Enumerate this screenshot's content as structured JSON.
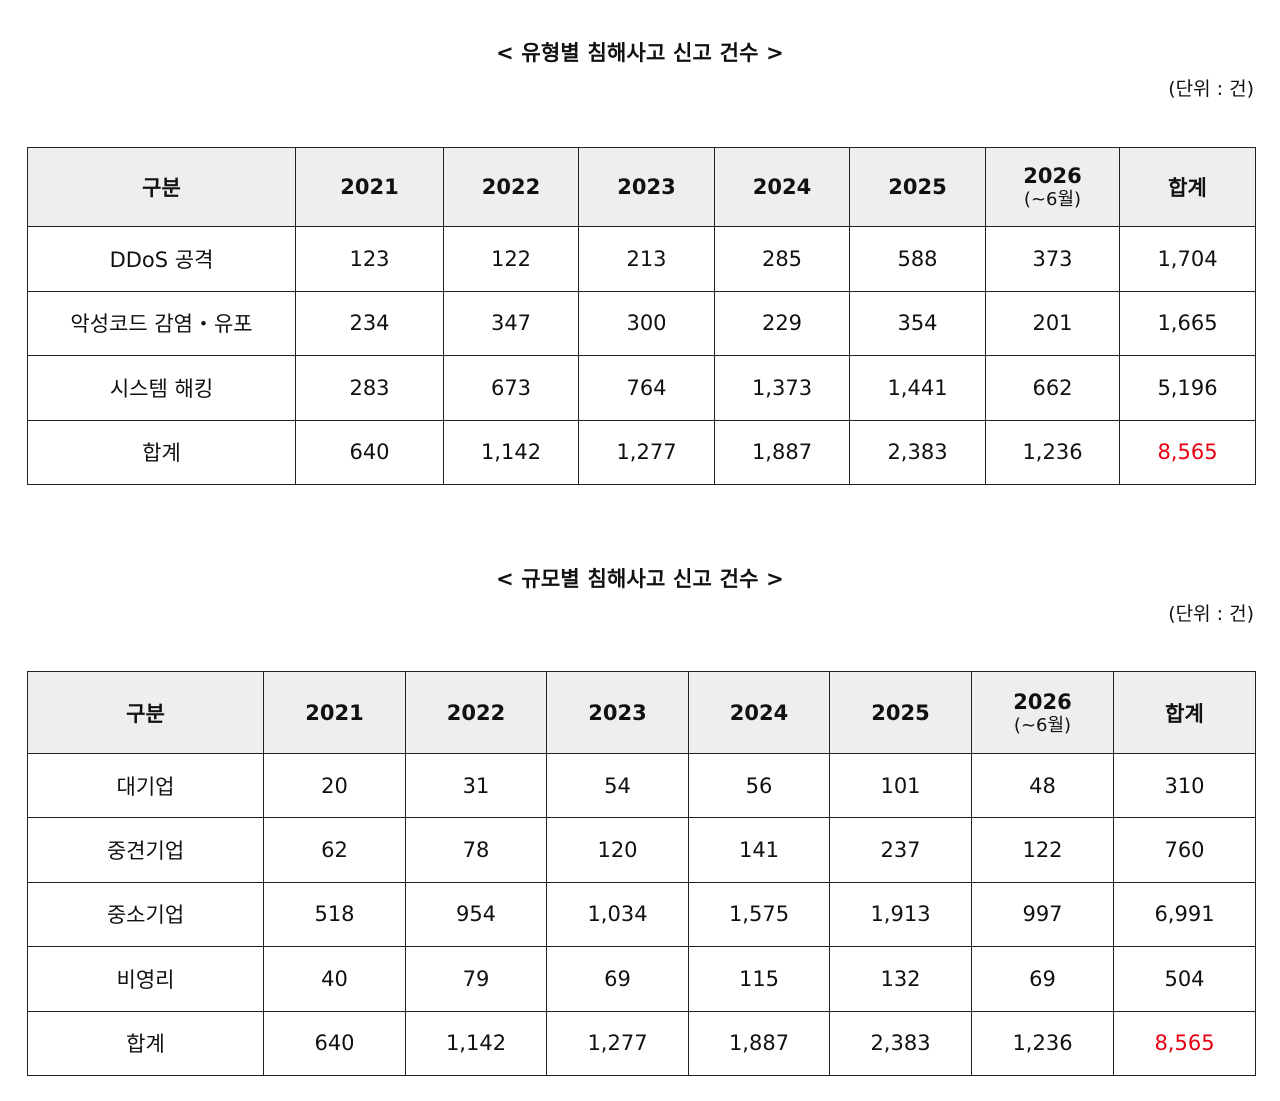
{
  "table1": {
    "title": "< 유형별 침해사고 신고 건수 >",
    "unit": "(단위 : 건)",
    "headers": [
      "구분",
      "2021",
      "2022",
      "2023",
      "2024",
      "2025",
      "2026",
      "합계"
    ],
    "header_sub": "(~6월)",
    "rows": [
      [
        "DDoS 공격",
        "123",
        "122",
        "213",
        "285",
        "588",
        "373",
        "1,704"
      ],
      [
        "악성코드 감염・유포",
        "234",
        "347",
        "300",
        "229",
        "354",
        "201",
        "1,665"
      ],
      [
        "시스템 해킹",
        "283",
        "673",
        "764",
        "1,373",
        "1,441",
        "662",
        "5,196"
      ],
      [
        "합계",
        "640",
        "1,142",
        "1,277",
        "1,887",
        "2,383",
        "1,236",
        "8,565"
      ]
    ]
  },
  "table2": {
    "title": "< 규모별 침해사고 신고 건수 >",
    "unit": "(단위 : 건)",
    "headers": [
      "구분",
      "2021",
      "2022",
      "2023",
      "2024",
      "2025",
      "2026",
      "합계"
    ],
    "header_sub": "(~6월)",
    "rows": [
      [
        "대기업",
        "20",
        "31",
        "54",
        "56",
        "101",
        "48",
        "310"
      ],
      [
        "중견기업",
        "62",
        "78",
        "120",
        "141",
        "237",
        "122",
        "760"
      ],
      [
        "중소기업",
        "518",
        "954",
        "1,034",
        "1,575",
        "1,913",
        "997",
        "6,991"
      ],
      [
        "비영리",
        "40",
        "79",
        "69",
        "115",
        "132",
        "69",
        "504"
      ],
      [
        "합계",
        "640",
        "1,142",
        "1,277",
        "1,887",
        "2,383",
        "1,236",
        "8,565"
      ]
    ]
  },
  "colors": {
    "header_bg": "#eeeeee",
    "border": "#222222",
    "grand_total": "#e60012"
  }
}
